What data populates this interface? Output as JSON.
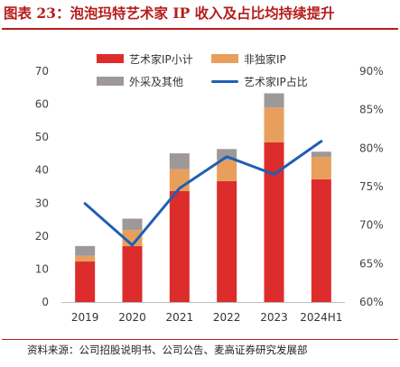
{
  "header": {
    "title": "图表 23：泡泡玛特艺术家 IP 收入及占比均持续提升"
  },
  "footer": {
    "source": "资料来源：公司招股说明书、公司公告、麦高证券研究发展部"
  },
  "colors": {
    "artist_ip": "#dd2c2c",
    "exclusive_ip": "#e89f5c",
    "external": "#9e9998",
    "ratio_line": "#1f5fb5",
    "title": "#b71c1c"
  },
  "chart_data": {
    "type": "bar",
    "stacked": true,
    "categories": [
      "2019",
      "2020",
      "2021",
      "2022",
      "2023",
      "2024H1"
    ],
    "series": [
      {
        "name": "艺术家IP小计",
        "axis": "left",
        "values": [
          12.3,
          17.0,
          33.7,
          36.7,
          48.4,
          37.2
        ],
        "color": "#dd2c2c"
      },
      {
        "name": "非独家IP",
        "axis": "left",
        "values": [
          1.7,
          4.8,
          6.6,
          6.3,
          10.6,
          6.8
        ],
        "color": "#e89f5c"
      },
      {
        "name": "外采及其他",
        "axis": "left",
        "values": [
          3.0,
          3.5,
          4.8,
          3.4,
          4.3,
          1.6
        ],
        "color": "#9e9998"
      },
      {
        "name": "艺术家IP占比",
        "axis": "right",
        "type": "line",
        "values": [
          72.8,
          67.4,
          74.8,
          78.9,
          76.6,
          80.9
        ],
        "color": "#1f5fb5"
      }
    ],
    "left_axis": {
      "ticks": [
        "0",
        "10",
        "20",
        "30",
        "40",
        "50",
        "60",
        "70"
      ],
      "ylim": [
        0,
        70
      ]
    },
    "right_axis": {
      "ticks": [
        "60%",
        "65%",
        "70%",
        "75%",
        "80%",
        "85%",
        "90%"
      ],
      "ylim": [
        60,
        90
      ]
    },
    "grid": false,
    "legend_position": "top"
  }
}
